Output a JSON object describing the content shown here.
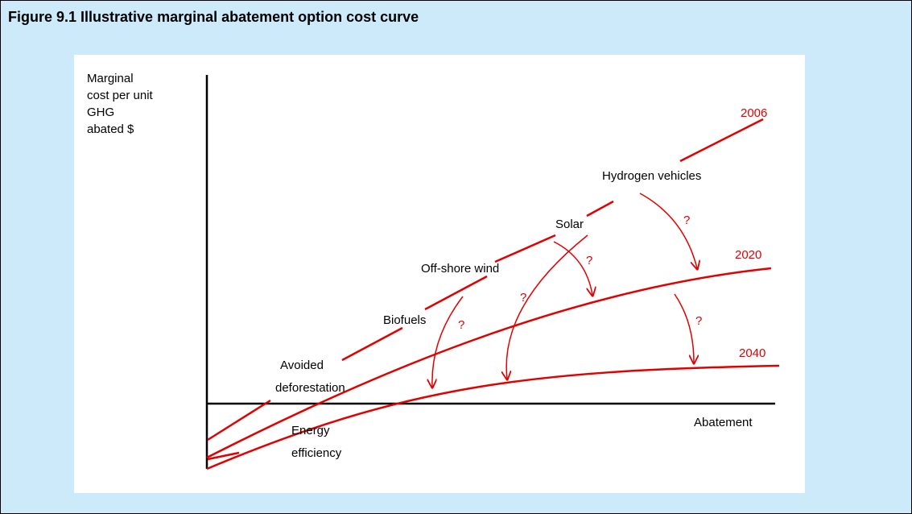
{
  "title": "Figure 9.1   Illustrative marginal abatement option cost curve",
  "y_axis_label": [
    "Marginal",
    "cost per unit",
    "GHG",
    "abated  $"
  ],
  "x_axis_label": "Abatement",
  "curve_labels": [
    "2006",
    "2020",
    "2040"
  ],
  "options": [
    "Hydrogen vehicles",
    "Solar",
    "Off-shore wind",
    "Biofuels",
    "Avoided",
    "deforestation",
    "Energy",
    "efficiency"
  ],
  "question_marks": [
    "?",
    "?",
    "?",
    "?",
    "?"
  ]
}
